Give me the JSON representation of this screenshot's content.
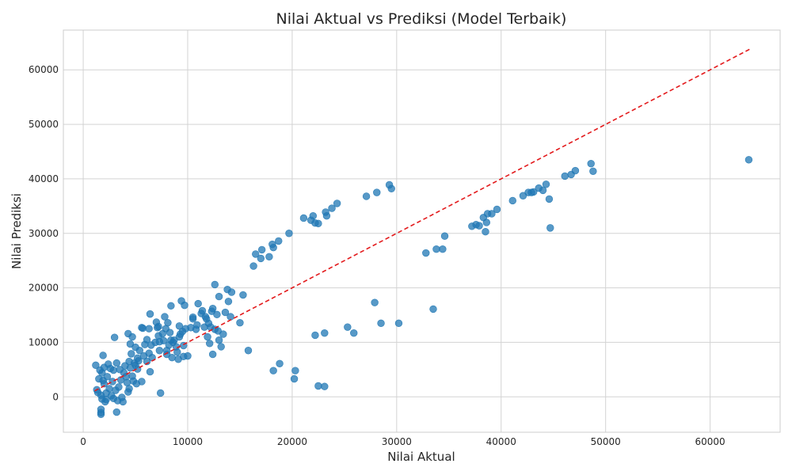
{
  "chart_data": {
    "type": "scatter",
    "title": "Nilai Aktual vs Prediksi (Model Terbaik)",
    "xlabel": "Nilai Aktual",
    "ylabel": "Nilai Prediksi",
    "xlim": [
      -1900,
      66700
    ],
    "ylim": [
      -6500,
      67300
    ],
    "xticks": [
      0,
      10000,
      20000,
      30000,
      40000,
      50000,
      60000
    ],
    "yticks": [
      0,
      10000,
      20000,
      30000,
      40000,
      50000,
      60000
    ],
    "grid": true,
    "legend": "none",
    "point_color": "#1f77b4",
    "line_color": "#e31a1c",
    "reference_line": {
      "style": "dashed",
      "from": [
        1100,
        1100
      ],
      "to": [
        63800,
        63800
      ]
    },
    "points": [
      [
        1200,
        5800
      ],
      [
        1300,
        1300
      ],
      [
        1400,
        800
      ],
      [
        1500,
        3300
      ],
      [
        1600,
        4900
      ],
      [
        1700,
        300
      ],
      [
        1700,
        -2300
      ],
      [
        1700,
        -2900
      ],
      [
        1700,
        -3200
      ],
      [
        1800,
        -400
      ],
      [
        1800,
        4400
      ],
      [
        1900,
        7600
      ],
      [
        1900,
        3000
      ],
      [
        2000,
        2400
      ],
      [
        2000,
        5400
      ],
      [
        2100,
        -900
      ],
      [
        2200,
        700
      ],
      [
        2200,
        -500
      ],
      [
        2300,
        3700
      ],
      [
        2400,
        6000
      ],
      [
        2500,
        1500
      ],
      [
        2600,
        5200
      ],
      [
        2700,
        200
      ],
      [
        2800,
        2800
      ],
      [
        2900,
        4900
      ],
      [
        2900,
        -300
      ],
      [
        3000,
        10900
      ],
      [
        3100,
        1200
      ],
      [
        3200,
        -2800
      ],
      [
        3200,
        6200
      ],
      [
        3300,
        -700
      ],
      [
        3400,
        1800
      ],
      [
        3500,
        5000
      ],
      [
        3600,
        3100
      ],
      [
        3700,
        -100
      ],
      [
        3800,
        -900
      ],
      [
        3900,
        4400
      ],
      [
        4000,
        5700
      ],
      [
        4100,
        3700
      ],
      [
        4200,
        2600
      ],
      [
        4300,
        11600
      ],
      [
        4300,
        900
      ],
      [
        4400,
        6500
      ],
      [
        4400,
        1500
      ],
      [
        4500,
        9700
      ],
      [
        4500,
        5300
      ],
      [
        4600,
        7900
      ],
      [
        4700,
        11000
      ],
      [
        4700,
        3800
      ],
      [
        4800,
        2900
      ],
      [
        4900,
        6200
      ],
      [
        5000,
        9100
      ],
      [
        5000,
        5800
      ],
      [
        5100,
        2400
      ],
      [
        5200,
        7100
      ],
      [
        5200,
        5100
      ],
      [
        5300,
        6600
      ],
      [
        5400,
        8500
      ],
      [
        5600,
        2800
      ],
      [
        5600,
        12700
      ],
      [
        5700,
        12600
      ],
      [
        5800,
        7500
      ],
      [
        5900,
        9600
      ],
      [
        6100,
        6500
      ],
      [
        6100,
        10500
      ],
      [
        6300,
        8000
      ],
      [
        6300,
        12500
      ],
      [
        6400,
        15200
      ],
      [
        6400,
        4600
      ],
      [
        6500,
        9500
      ],
      [
        6600,
        7200
      ],
      [
        6900,
        10000
      ],
      [
        7000,
        13700
      ],
      [
        7100,
        12700
      ],
      [
        7200,
        12900
      ],
      [
        7200,
        11200
      ],
      [
        7300,
        10100
      ],
      [
        7300,
        8500
      ],
      [
        7400,
        700
      ],
      [
        7600,
        11600
      ],
      [
        7700,
        10300
      ],
      [
        7800,
        14700
      ],
      [
        7900,
        12500
      ],
      [
        8000,
        8500
      ],
      [
        8000,
        7800
      ],
      [
        8100,
        13600
      ],
      [
        8200,
        9500
      ],
      [
        8300,
        11800
      ],
      [
        8400,
        16700
      ],
      [
        8400,
        10400
      ],
      [
        8500,
        7200
      ],
      [
        8600,
        10000
      ],
      [
        8700,
        10400
      ],
      [
        8900,
        9200
      ],
      [
        9000,
        8200
      ],
      [
        9100,
        6900
      ],
      [
        9200,
        11000
      ],
      [
        9200,
        13000
      ],
      [
        9300,
        11500
      ],
      [
        9400,
        17600
      ],
      [
        9500,
        12000
      ],
      [
        9600,
        9400
      ],
      [
        9600,
        7400
      ],
      [
        9700,
        16800
      ],
      [
        9800,
        12500
      ],
      [
        10000,
        7500
      ],
      [
        10300,
        12700
      ],
      [
        10500,
        14600
      ],
      [
        10500,
        14300
      ],
      [
        10800,
        12400
      ],
      [
        10900,
        13200
      ],
      [
        11000,
        17100
      ],
      [
        11300,
        15300
      ],
      [
        11400,
        15800
      ],
      [
        11600,
        12800
      ],
      [
        11700,
        14700
      ],
      [
        11800,
        14300
      ],
      [
        11900,
        11000
      ],
      [
        12000,
        13500
      ],
      [
        12100,
        9800
      ],
      [
        12200,
        12800
      ],
      [
        12300,
        15700
      ],
      [
        12400,
        16200
      ],
      [
        12400,
        7800
      ],
      [
        12600,
        20600
      ],
      [
        12600,
        12400
      ],
      [
        12800,
        15100
      ],
      [
        12900,
        12100
      ],
      [
        13000,
        18400
      ],
      [
        13000,
        10400
      ],
      [
        13200,
        9200
      ],
      [
        13400,
        11500
      ],
      [
        13600,
        15500
      ],
      [
        13800,
        19700
      ],
      [
        13900,
        17500
      ],
      [
        14100,
        14700
      ],
      [
        14200,
        19200
      ],
      [
        15000,
        13600
      ],
      [
        15300,
        18700
      ],
      [
        15800,
        8500
      ],
      [
        16300,
        24000
      ],
      [
        16500,
        26200
      ],
      [
        17000,
        25400
      ],
      [
        17100,
        27000
      ],
      [
        17800,
        25700
      ],
      [
        18100,
        28000
      ],
      [
        18200,
        27400
      ],
      [
        18200,
        4800
      ],
      [
        18700,
        28600
      ],
      [
        18800,
        6100
      ],
      [
        19700,
        30000
      ],
      [
        20200,
        3300
      ],
      [
        20300,
        4800
      ],
      [
        21100,
        32800
      ],
      [
        21800,
        32400
      ],
      [
        22000,
        33200
      ],
      [
        22200,
        31900
      ],
      [
        22200,
        11300
      ],
      [
        22500,
        31800
      ],
      [
        22500,
        2000
      ],
      [
        23100,
        11700
      ],
      [
        23100,
        1900
      ],
      [
        23200,
        33900
      ],
      [
        23300,
        33200
      ],
      [
        23800,
        34600
      ],
      [
        24300,
        35500
      ],
      [
        25300,
        12800
      ],
      [
        25900,
        11700
      ],
      [
        27100,
        36800
      ],
      [
        27900,
        17300
      ],
      [
        28100,
        37500
      ],
      [
        28500,
        13500
      ],
      [
        29300,
        38900
      ],
      [
        29500,
        38200
      ],
      [
        30200,
        13500
      ],
      [
        32800,
        26400
      ],
      [
        33500,
        16100
      ],
      [
        33800,
        27100
      ],
      [
        34400,
        27100
      ],
      [
        34600,
        29500
      ],
      [
        37200,
        31300
      ],
      [
        37600,
        31600
      ],
      [
        37900,
        31400
      ],
      [
        38300,
        32900
      ],
      [
        38500,
        30300
      ],
      [
        38600,
        32000
      ],
      [
        38700,
        33600
      ],
      [
        39100,
        33600
      ],
      [
        39600,
        34400
      ],
      [
        41100,
        36000
      ],
      [
        42100,
        36900
      ],
      [
        42600,
        37500
      ],
      [
        42900,
        37500
      ],
      [
        43100,
        37600
      ],
      [
        43600,
        38300
      ],
      [
        44000,
        37900
      ],
      [
        44300,
        39000
      ],
      [
        44600,
        36300
      ],
      [
        44700,
        31000
      ],
      [
        46100,
        40500
      ],
      [
        46700,
        40800
      ],
      [
        47100,
        41500
      ],
      [
        48600,
        42800
      ],
      [
        48800,
        41400
      ],
      [
        63700,
        43500
      ]
    ]
  }
}
